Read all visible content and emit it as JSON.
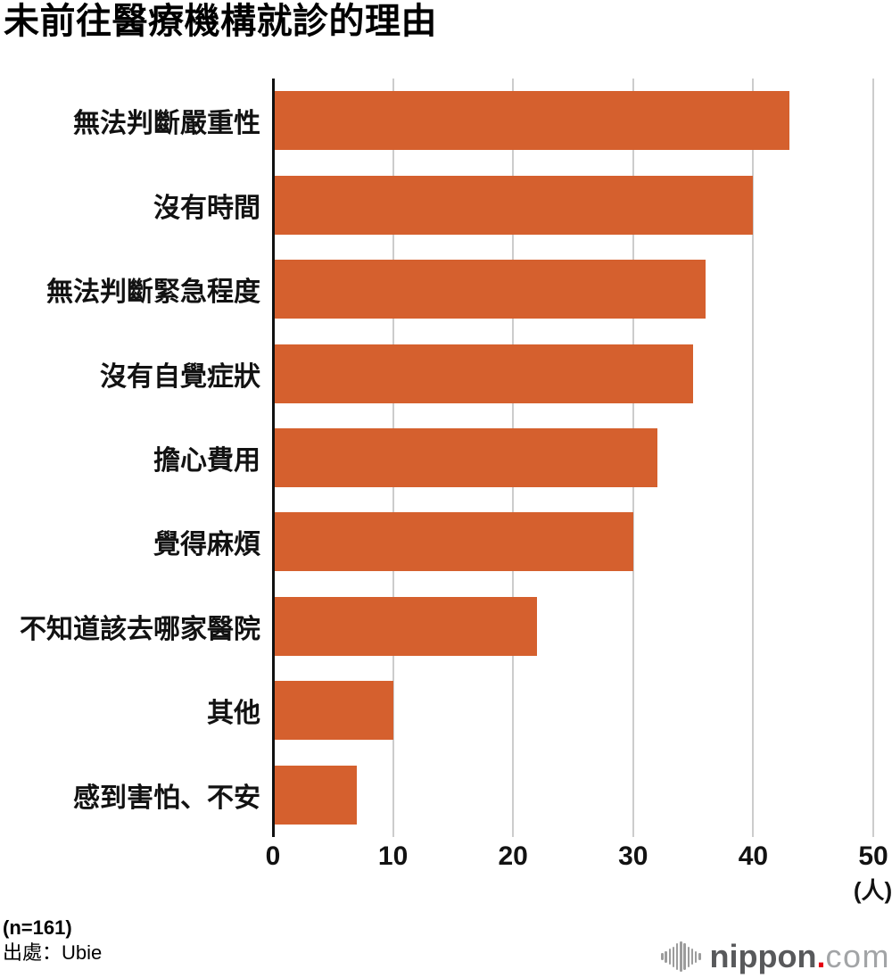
{
  "title": "未前往醫療機構就診的理由",
  "chart_data": {
    "type": "bar",
    "orientation": "horizontal",
    "title": "未前往醫療機構就診的理由",
    "categories": [
      "無法判斷嚴重性",
      "沒有時間",
      "無法判斷緊急程度",
      "沒有自覺症狀",
      "擔心費用",
      "覺得麻煩",
      "不知道該去哪家醫院",
      "其他",
      "感到害怕、不安"
    ],
    "values": [
      43,
      40,
      36,
      35,
      32,
      30,
      22,
      10,
      7
    ],
    "xlabel": "(人)",
    "xlim": [
      0,
      50
    ],
    "xticks": [
      0,
      10,
      20,
      30,
      40,
      50
    ],
    "grid": true,
    "legend": "none",
    "bar_color": "#d5602e",
    "gridline_color": "#cccccc",
    "axis_color": "#111111"
  },
  "footer": {
    "sample_size": "(n=161)",
    "source": "出處：Ubie"
  },
  "logo": {
    "icon": "soundwave-icon",
    "name": "nippon",
    "dot": ".",
    "suffix": "com",
    "name_color": "#58595b",
    "dot_color": "#e60012",
    "suffix_color": "#a2a4a6",
    "icon_color": "#9c9c9c"
  }
}
